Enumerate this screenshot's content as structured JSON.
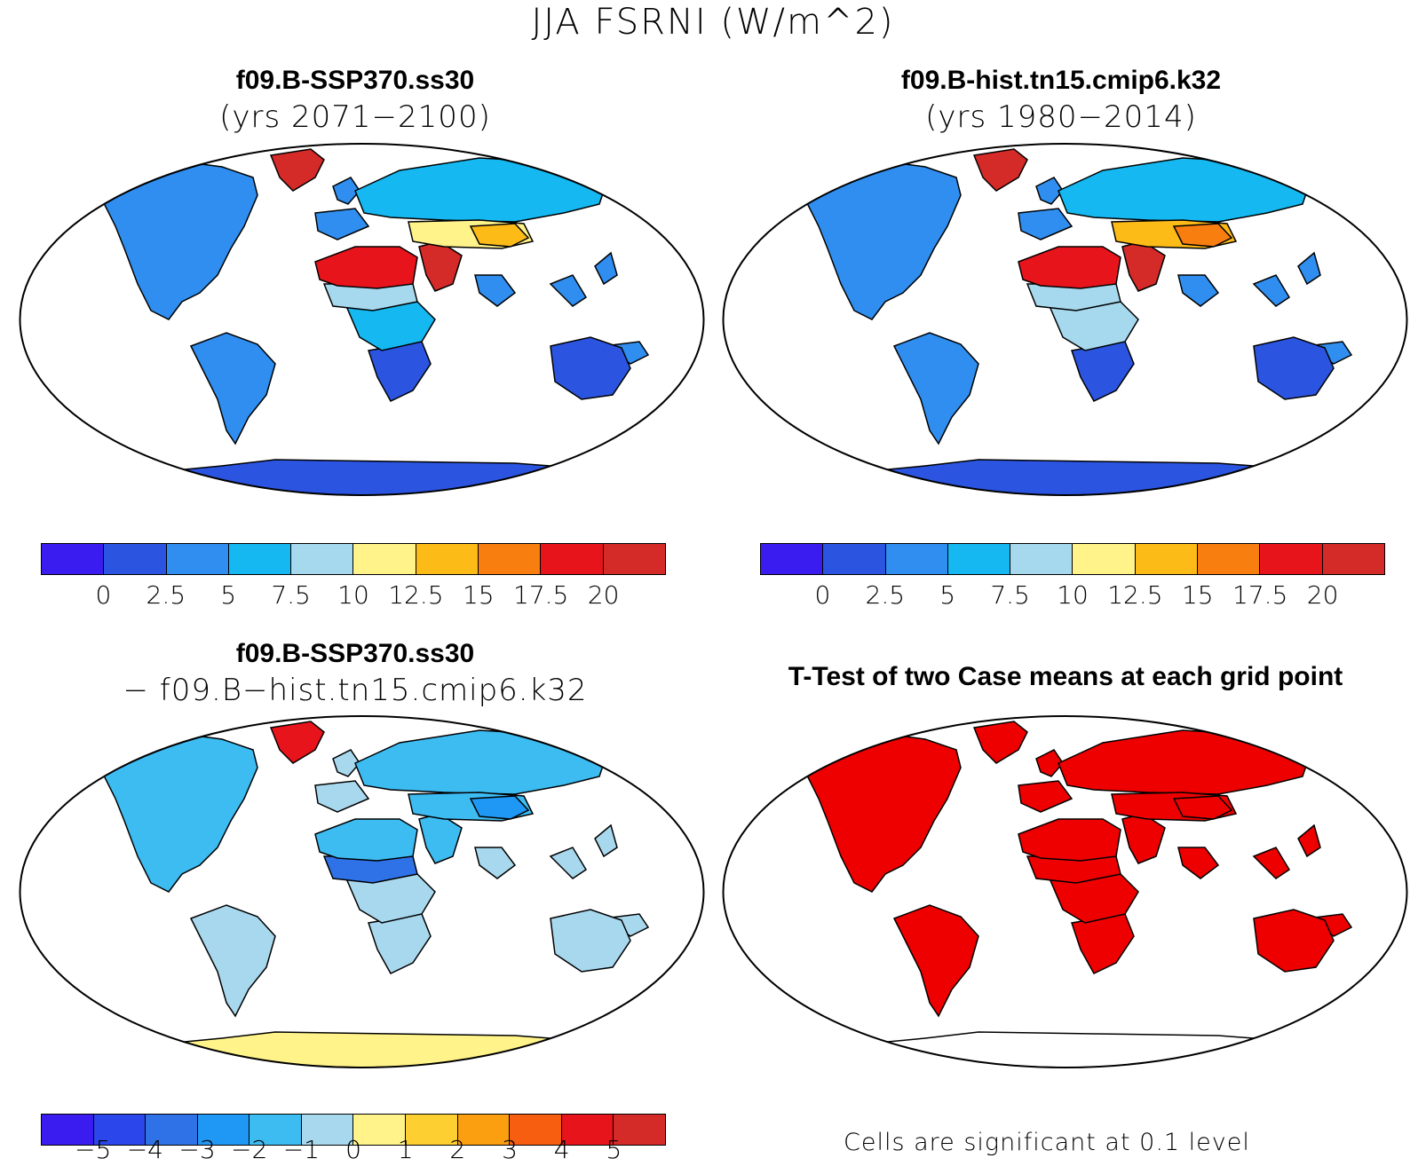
{
  "title": "JJA FSRNI (W/m^2)",
  "panels": {
    "top_left": {
      "line1": "f09.B-SSP370.ss30",
      "line2": "(yrs 2071−2100)"
    },
    "top_right": {
      "line1": "f09.B-hist.tn15.cmip6.k32",
      "line2": "(yrs 1980−2014)"
    },
    "bottom_left": {
      "line1": "f09.B-SSP370.ss30",
      "line2": "− f09.B−hist.tn15.cmip6.k32"
    },
    "bottom_right": {
      "line1": "T-Test of two Case means at each grid point"
    }
  },
  "significance_note": "Cells are significant at 0.1 level",
  "colors": {
    "ocean": "#ffffff",
    "coastline": "#000000",
    "significant": "#ee0000"
  },
  "chart_data": [
    {
      "type": "heatmap",
      "projection": "robinson",
      "title": "f09.B-SSP370.ss30",
      "subtitle": "(yrs 2071−2100)",
      "colorbar": {
        "colors": [
          "#3a1cf0",
          "#2b55e0",
          "#2f8ef0",
          "#15b8f0",
          "#a6d8ee",
          "#fff38a",
          "#fdbb18",
          "#f87e10",
          "#e8141c",
          "#d42a28"
        ],
        "tick_labels": [
          "0",
          "2.5",
          "5",
          "7.5",
          "10",
          "12.5",
          "15",
          "17.5",
          "20"
        ]
      },
      "regions": [
        {
          "region": "Antarctica",
          "level": 1
        },
        {
          "region": "Australia",
          "level": 1
        },
        {
          "region": "South America",
          "level": 2
        },
        {
          "region": "North America",
          "level": 2
        },
        {
          "region": "Siberia",
          "level": 3
        },
        {
          "region": "Africa south",
          "level": 1
        },
        {
          "region": "Central Africa",
          "level": 3
        },
        {
          "region": "Sahel",
          "level": 4
        },
        {
          "region": "Sahara",
          "level": 8
        },
        {
          "region": "Arabia",
          "level": 9
        },
        {
          "region": "Central Asia",
          "level": 5
        },
        {
          "region": "Tibet",
          "level": 6
        },
        {
          "region": "Greenland",
          "level": 9
        }
      ]
    },
    {
      "type": "heatmap",
      "projection": "robinson",
      "title": "f09.B-hist.tn15.cmip6.k32",
      "subtitle": "(yrs 1980−2014)",
      "colorbar": {
        "colors": [
          "#3a1cf0",
          "#2b55e0",
          "#2f8ef0",
          "#15b8f0",
          "#a6d8ee",
          "#fff38a",
          "#fdbb18",
          "#f87e10",
          "#e8141c",
          "#d42a28"
        ],
        "tick_labels": [
          "0",
          "2.5",
          "5",
          "7.5",
          "10",
          "12.5",
          "15",
          "17.5",
          "20"
        ]
      },
      "regions": [
        {
          "region": "Antarctica",
          "level": 1
        },
        {
          "region": "Australia",
          "level": 1
        },
        {
          "region": "South America",
          "level": 2
        },
        {
          "region": "North America",
          "level": 2
        },
        {
          "region": "Siberia",
          "level": 3
        },
        {
          "region": "Africa south",
          "level": 1
        },
        {
          "region": "Central Africa",
          "level": 4
        },
        {
          "region": "Sahel",
          "level": 4
        },
        {
          "region": "Sahara",
          "level": 8
        },
        {
          "region": "Arabia",
          "level": 9
        },
        {
          "region": "Central Asia",
          "level": 6
        },
        {
          "region": "Tibet",
          "level": 7
        },
        {
          "region": "Greenland",
          "level": 9
        }
      ]
    },
    {
      "type": "heatmap",
      "projection": "robinson",
      "title": "f09.B-SSP370.ss30",
      "subtitle": "− f09.B−hist.tn15.cmip6.k32",
      "colorbar": {
        "colors": [
          "#3a1cf0",
          "#2b46ea",
          "#2f72e8",
          "#1e98f4",
          "#3dbcf2",
          "#a8d8ee",
          "#fff38a",
          "#fdcf30",
          "#fb9e10",
          "#f85e10",
          "#e8141c",
          "#d42a28"
        ],
        "tick_labels": [
          "−5",
          "−4",
          "−3",
          "−2",
          "−1",
          "0",
          "1",
          "2",
          "3",
          "4",
          "5"
        ]
      },
      "regions": [
        {
          "region": "Antarctica",
          "level": 6
        },
        {
          "region": "Australia",
          "level": 5
        },
        {
          "region": "South America",
          "level": 5
        },
        {
          "region": "North America",
          "level": 4
        },
        {
          "region": "Siberia",
          "level": 4
        },
        {
          "region": "Africa south",
          "level": 5
        },
        {
          "region": "Central Africa",
          "level": 5
        },
        {
          "region": "Sahel",
          "level": 2
        },
        {
          "region": "Sahara",
          "level": 4
        },
        {
          "region": "Arabia",
          "level": 4
        },
        {
          "region": "Central Asia",
          "level": 4
        },
        {
          "region": "Tibet",
          "level": 3
        },
        {
          "region": "Greenland",
          "level": 10
        }
      ]
    },
    {
      "type": "heatmap",
      "projection": "robinson",
      "title": "T-Test of two Case means at each grid point",
      "legend_note": "Cells are significant at 0.1 level",
      "significant_color": "#ee0000",
      "regions": [
        {
          "region": "Antarctica",
          "significant": false
        },
        {
          "region": "Australia",
          "significant": true
        },
        {
          "region": "South America",
          "significant": true
        },
        {
          "region": "North America",
          "significant": true
        },
        {
          "region": "Siberia",
          "significant": true
        },
        {
          "region": "Africa south",
          "significant": true
        },
        {
          "region": "Central Africa",
          "significant": true
        },
        {
          "region": "Sahel",
          "significant": true
        },
        {
          "region": "Sahara",
          "significant": true
        },
        {
          "region": "Arabia",
          "significant": true
        },
        {
          "region": "Central Asia",
          "significant": true
        },
        {
          "region": "Tibet",
          "significant": true
        },
        {
          "region": "Greenland",
          "significant": true
        }
      ]
    }
  ]
}
